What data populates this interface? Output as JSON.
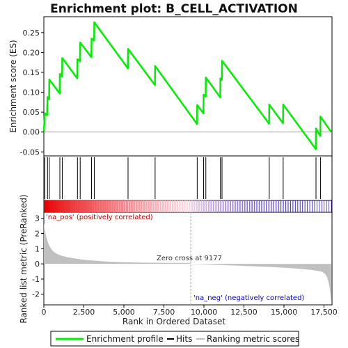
{
  "chart_data": {
    "type": "line",
    "title": "Enrichment plot: B_CELL_ACTIVATION",
    "es_ylabel": "Enrichment score (ES)",
    "metric_ylabel": "Ranked list metric (PreRanked)",
    "xlabel": "Rank in Ordered Dataset",
    "x_range": [
      0,
      18000
    ],
    "es_ylim": [
      -0.06,
      0.29
    ],
    "metric_ylim": [
      -2.7,
      3.4
    ],
    "x_ticks": [
      0,
      2500,
      5000,
      7500,
      10000,
      12500,
      15000,
      17500
    ],
    "x_tick_labels": [
      "0",
      "2,500",
      "5,000",
      "7,500",
      "10,000",
      "12,500",
      "15,000",
      "17,500"
    ],
    "es_ticks": [
      -0.05,
      0.0,
      0.05,
      0.1,
      0.15,
      0.2,
      0.25
    ],
    "es_tick_labels": [
      "-0.05",
      "0.00",
      "0.05",
      "0.10",
      "0.15",
      "0.20",
      "0.25"
    ],
    "metric_ticks": [
      -2,
      -1,
      0,
      1,
      2,
      3
    ],
    "metric_tick_labels": [
      "-2",
      "-1",
      "0",
      "1",
      "2",
      "3"
    ],
    "hits": [
      60,
      230,
      340,
      1000,
      1150,
      2100,
      2270,
      2980,
      3150,
      5260,
      6950,
      9580,
      9980,
      10120,
      11030,
      11130,
      14080,
      14950,
      17000,
      17280
    ],
    "es_profile": [
      [
        0,
        0.0
      ],
      [
        60,
        0.047
      ],
      [
        200,
        0.042
      ],
      [
        230,
        0.088
      ],
      [
        330,
        0.082
      ],
      [
        340,
        0.132
      ],
      [
        990,
        0.097
      ],
      [
        1000,
        0.146
      ],
      [
        1140,
        0.14
      ],
      [
        1150,
        0.186
      ],
      [
        2090,
        0.135
      ],
      [
        2100,
        0.183
      ],
      [
        2260,
        0.178
      ],
      [
        2270,
        0.225
      ],
      [
        2970,
        0.188
      ],
      [
        2980,
        0.235
      ],
      [
        3140,
        0.23
      ],
      [
        3150,
        0.276
      ],
      [
        5250,
        0.16
      ],
      [
        5260,
        0.209
      ],
      [
        6940,
        0.118
      ],
      [
        6950,
        0.166
      ],
      [
        9570,
        0.02
      ],
      [
        9580,
        0.068
      ],
      [
        9970,
        0.047
      ],
      [
        9980,
        0.094
      ],
      [
        10110,
        0.089
      ],
      [
        10120,
        0.137
      ],
      [
        11020,
        0.087
      ],
      [
        11030,
        0.135
      ],
      [
        11120,
        0.131
      ],
      [
        11130,
        0.179
      ],
      [
        14070,
        0.021
      ],
      [
        14080,
        0.069
      ],
      [
        14940,
        0.022
      ],
      [
        14950,
        0.069
      ],
      [
        16990,
        -0.043
      ],
      [
        17000,
        0.009
      ],
      [
        17270,
        -0.01
      ],
      [
        17280,
        0.039
      ],
      [
        17950,
        0.0
      ]
    ],
    "zero_cross": 9177,
    "zero_cross_label": "Zero cross at 9177",
    "pos_label": "'na_pos' (positively correlated)",
    "neg_label": "'na_neg' (negatively correlated)",
    "legend": [
      "Enrichment profile",
      "Hits",
      "Ranking metric scores"
    ],
    "colors": {
      "profile": "#00ee00",
      "hits": "#000000",
      "metric_fill": "#c0c0c0",
      "pos_text": "#cc0000",
      "neg_text": "#0000cc",
      "zero_line": "#aaaaaa"
    }
  }
}
